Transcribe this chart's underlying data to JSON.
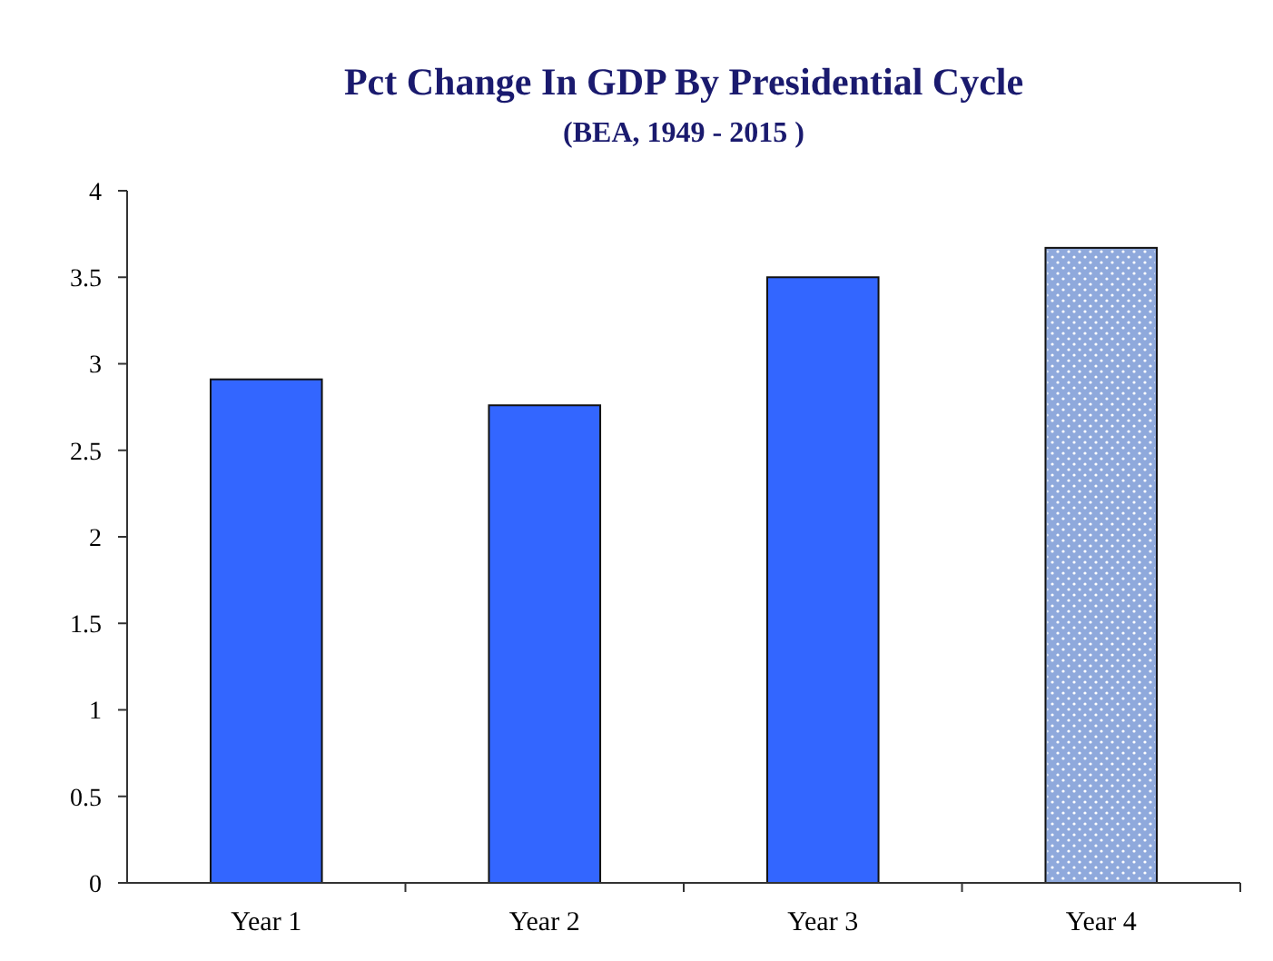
{
  "chart_data": {
    "type": "bar",
    "title": "Pct Change In GDP By Presidential Cycle",
    "subtitle": "(BEA, 1949 - 2015 )",
    "categories": [
      "Year 1",
      "Year 2",
      "Year 3",
      "Year 4"
    ],
    "values": [
      2.91,
      2.76,
      3.5,
      3.67
    ],
    "colors": [
      "#3366ff",
      "#3366ff",
      "#3366ff",
      "#8fa9dc"
    ],
    "ylim": [
      0,
      4
    ],
    "yticks": [
      0,
      0.5,
      1,
      1.5,
      2,
      2.5,
      3,
      3.5,
      4
    ],
    "grid": false
  }
}
